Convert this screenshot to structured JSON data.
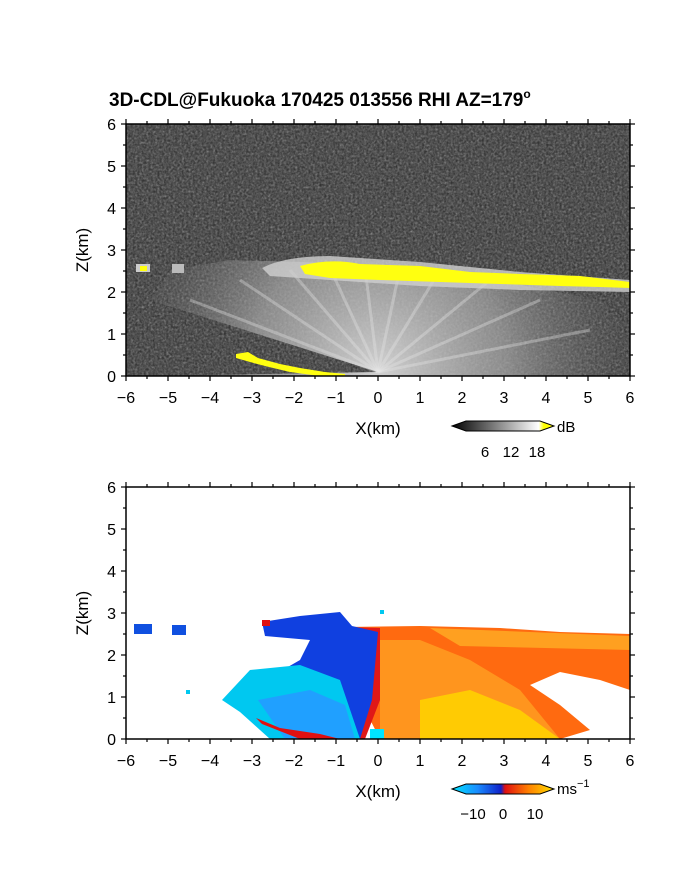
{
  "title": "3D-CDL@Fukuoka 170425 013556 RHI AZ=179",
  "title_sup": "o",
  "chart_data": [
    {
      "type": "heatmap",
      "name": "reflectivity",
      "xlabel": "X(km)",
      "ylabel": "Z(km)",
      "xlim": [
        -6,
        6
      ],
      "ylim": [
        0,
        6
      ],
      "xticks": [
        "−6",
        "−5",
        "−4",
        "−3",
        "−2",
        "−1",
        "0",
        "1",
        "2",
        "3",
        "4",
        "5",
        "6"
      ],
      "yticks": [
        "0",
        "1",
        "2",
        "3",
        "4",
        "5",
        "6"
      ],
      "colorbar": {
        "unit": "dB",
        "ticks": [
          "6",
          "12",
          "18"
        ],
        "range": [
          0,
          20
        ]
      },
      "features": {
        "cloud_layer_yellow": {
          "x_range": [
            -1.7,
            6.0
          ],
          "z_range": [
            2.2,
            2.6
          ]
        },
        "low_layer_yellow": {
          "x_range": [
            -3.3,
            -0.8
          ],
          "z_range": [
            0.05,
            0.5
          ]
        },
        "small_echoes": [
          {
            "x": -5.55,
            "z": 2.6
          },
          {
            "x": -4.75,
            "z": 2.6
          }
        ],
        "fan_origin": {
          "x": 0.0,
          "z": 0.1
        }
      }
    },
    {
      "type": "heatmap",
      "name": "doppler-velocity",
      "xlabel": "X(km)",
      "ylabel": "Z(km)",
      "xlim": [
        -6,
        6
      ],
      "ylim": [
        0,
        6
      ],
      "xticks": [
        "−6",
        "−5",
        "−4",
        "−3",
        "−2",
        "−1",
        "0",
        "1",
        "2",
        "3",
        "4",
        "5",
        "6"
      ],
      "yticks": [
        "0",
        "1",
        "2",
        "3",
        "4",
        "5",
        "6"
      ],
      "colorbar": {
        "unit": "ms",
        "unit_sup": "−1",
        "ticks": [
          "−10",
          "0",
          "10"
        ],
        "range": [
          -15,
          15
        ]
      },
      "features": {
        "negative_region": {
          "x_range": [
            -3.8,
            0.0
          ],
          "z_range": [
            0.0,
            2.9
          ]
        },
        "positive_region": {
          "x_range": [
            -0.6,
            6.0
          ],
          "z_range": [
            0.0,
            2.6
          ]
        },
        "small_echoes": [
          {
            "x": -5.55,
            "z": 2.55
          },
          {
            "x": -4.75,
            "z": 2.55
          }
        ]
      }
    }
  ]
}
